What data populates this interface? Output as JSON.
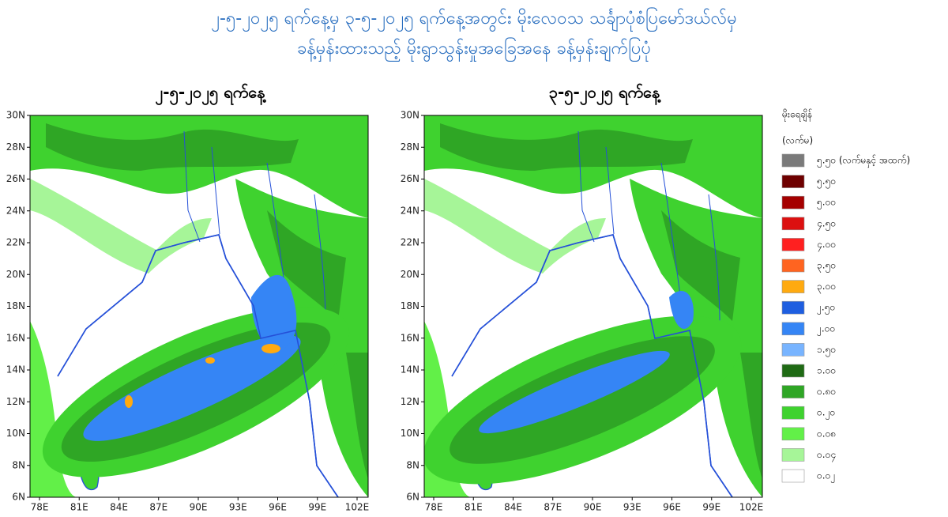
{
  "title": {
    "line1": "၂-၅-၂၀၂၅ ရက်နေ့မှ ၃-၅-၂၀၂၅ ရက်နေ့အတွင်း မိုးလေဝသ သင်္ချာပုံစံပြမော်ဒယ်လ်မှ",
    "line2": "ခန့်မှန်းထားသည့် မိုးရွာသွန်းမှုအခြေအနေ ခန့်မှန်းချက်ပြပုံ"
  },
  "panels": [
    {
      "title": "၂-၅-၂၀၂၅ ရက်နေ့"
    },
    {
      "title": "၃-၅-၂၀၂၅ ရက်နေ့"
    }
  ],
  "axes": {
    "lat_labels": [
      "30N",
      "28N",
      "26N",
      "24N",
      "22N",
      "20N",
      "18N",
      "16N",
      "14N",
      "12N",
      "10N",
      "8N",
      "6N"
    ],
    "lon_labels": [
      "78E",
      "81E",
      "84E",
      "87E",
      "90E",
      "93E",
      "96E",
      "99E",
      "102E"
    ]
  },
  "legend": {
    "title": "မိုးရေချိန်",
    "unit": "(လက်မ)",
    "items": [
      {
        "label": "၅.၅၀ (လက်မနှင့် အထက်)",
        "color": "#7a7a7a"
      },
      {
        "label": "၅.၅၀",
        "color": "#6e0000"
      },
      {
        "label": "၅.၀၀",
        "color": "#a50000"
      },
      {
        "label": "၄.၅၀",
        "color": "#dc1010"
      },
      {
        "label": "၄.၀၀",
        "color": "#ff2020"
      },
      {
        "label": "၃.၅၀",
        "color": "#ff6420"
      },
      {
        "label": "၃.၀၀",
        "color": "#ffaa10"
      },
      {
        "label": "၂.၅၀",
        "color": "#1e5ee0"
      },
      {
        "label": "၂.၀၀",
        "color": "#3585f5"
      },
      {
        "label": "၁.၅၀",
        "color": "#78b4ff"
      },
      {
        "label": "၁.၀၀",
        "color": "#1f6a14"
      },
      {
        "label": "၀.၈၀",
        "color": "#2fa625"
      },
      {
        "label": "၀.၂၀",
        "color": "#3fd22f"
      },
      {
        "label": "၀.၀၈",
        "color": "#62f048"
      },
      {
        "label": "၀.၀၄",
        "color": "#a6f598"
      },
      {
        "label": "၀.၀၂",
        "color": "#ffffff"
      }
    ]
  }
}
